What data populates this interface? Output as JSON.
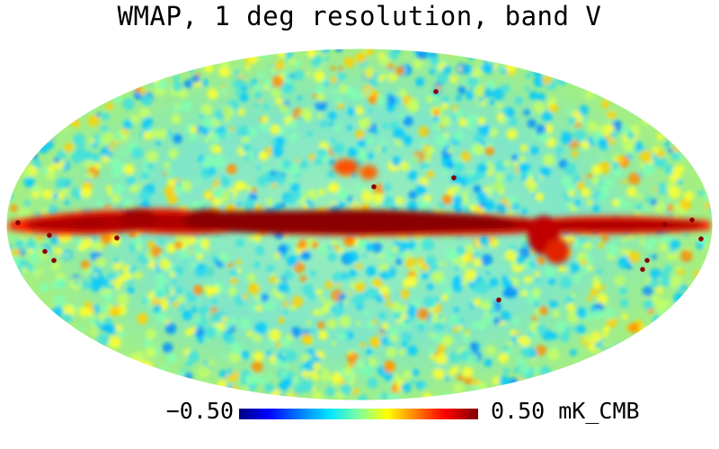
{
  "title": "WMAP, 1 deg resolution, band V",
  "map": {
    "projection": "Mollweide",
    "description_layers": [
      "cmb-fluctuations",
      "galactic-plane-emission",
      "point-sources"
    ]
  },
  "colorbar": {
    "min_label": "−0.50",
    "max_label": "0.50 mK_CMB",
    "min_value": -0.5,
    "max_value": 0.5,
    "unit": "mK_CMB",
    "colors": [
      "#000080",
      "#0000ff",
      "#0080ff",
      "#00e5ff",
      "#7fffa0",
      "#ffff00",
      "#ff8000",
      "#ff0000",
      "#800000"
    ]
  }
}
